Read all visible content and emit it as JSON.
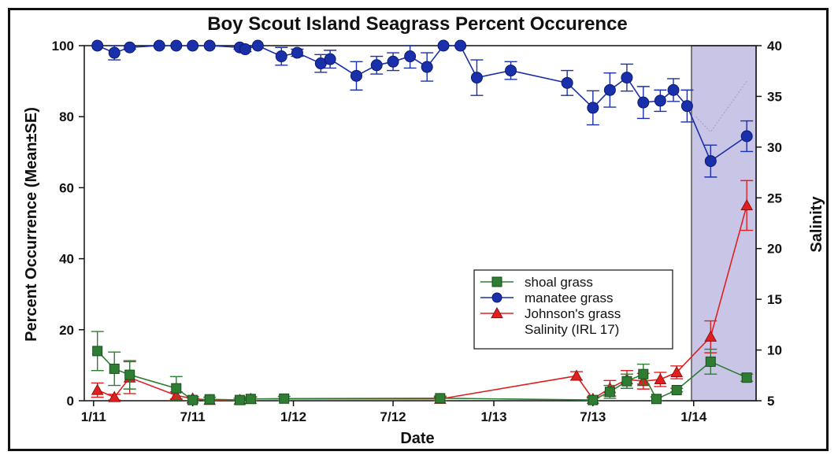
{
  "chart_data": {
    "type": "line",
    "title": "Boy Scout Island Seagrass Percent Occurence",
    "xlabel": "Date",
    "ylabel": "Percent Occurrence (Mean±SE)",
    "y2label": "Salinity",
    "xlim": [
      "2010-12-15",
      "2014-04-25"
    ],
    "ylim": [
      0,
      100
    ],
    "y2lim": [
      5,
      40
    ],
    "x_ticks": [
      {
        "date": "2011-01-01",
        "label": "1/11"
      },
      {
        "date": "2011-07-01",
        "label": "7/11"
      },
      {
        "date": "2012-01-01",
        "label": "1/12"
      },
      {
        "date": "2012-07-01",
        "label": "7/12"
      },
      {
        "date": "2013-01-01",
        "label": "1/13"
      },
      {
        "date": "2013-07-01",
        "label": "7/13"
      },
      {
        "date": "2014-01-01",
        "label": "1/14"
      }
    ],
    "y_ticks": [
      0,
      20,
      40,
      60,
      80,
      100
    ],
    "y2_ticks": [
      5,
      10,
      15,
      20,
      25,
      30,
      35,
      40
    ],
    "grid": false,
    "legend_position": "lower-right",
    "highlight_region": {
      "x0": "2013-12-28",
      "x1": "2014-04-25",
      "color": "#b7b2e0"
    },
    "series": [
      {
        "name": "shoal grass",
        "color": "#2e7d32",
        "marker": "square",
        "axis": "left",
        "points": [
          {
            "x": "2011-01-08",
            "y": 14,
            "err": 5.5
          },
          {
            "x": "2011-02-08",
            "y": 9,
            "err": 4.7
          },
          {
            "x": "2011-03-08",
            "y": 7.3,
            "err": 4
          },
          {
            "x": "2011-06-01",
            "y": 3.5,
            "err": 3.3
          },
          {
            "x": "2011-07-01",
            "y": 0.2,
            "err": 0.6
          },
          {
            "x": "2011-08-01",
            "y": 0.4,
            "err": 0.6
          },
          {
            "x": "2011-09-25",
            "y": 0.2,
            "err": 0.5
          },
          {
            "x": "2011-10-15",
            "y": 0.5,
            "err": 0.6
          },
          {
            "x": "2011-12-15",
            "y": 0.6,
            "err": 0.6
          },
          {
            "x": "2012-09-25",
            "y": 0.7,
            "err": 0.6
          },
          {
            "x": "2013-07-01",
            "y": 0.2,
            "err": 0.6
          },
          {
            "x": "2013-08-01",
            "y": 2.5,
            "err": 1.8
          },
          {
            "x": "2013-09-01",
            "y": 5.5,
            "err": 2
          },
          {
            "x": "2013-10-01",
            "y": 7.5,
            "err": 2.8
          },
          {
            "x": "2013-10-25",
            "y": 0.5,
            "err": 0.6
          },
          {
            "x": "2013-12-01",
            "y": 3,
            "err": 0.5
          },
          {
            "x": "2014-02-01",
            "y": 11,
            "err": 3.5
          },
          {
            "x": "2014-04-08",
            "y": 6.5,
            "err": 1
          }
        ]
      },
      {
        "name": "manatee grass",
        "color": "#1a2faa",
        "marker": "circle",
        "axis": "left",
        "points": [
          {
            "x": "2011-01-08",
            "y": 100,
            "err": 0
          },
          {
            "x": "2011-02-08",
            "y": 98,
            "err": 2
          },
          {
            "x": "2011-03-08",
            "y": 99.5,
            "err": 0.5
          },
          {
            "x": "2011-05-01",
            "y": 100,
            "err": 0
          },
          {
            "x": "2011-06-01",
            "y": 100,
            "err": 0
          },
          {
            "x": "2011-07-01",
            "y": 100,
            "err": 0
          },
          {
            "x": "2011-08-01",
            "y": 100,
            "err": 0
          },
          {
            "x": "2011-09-25",
            "y": 99.5,
            "err": 0.5
          },
          {
            "x": "2011-10-05",
            "y": 99,
            "err": 0.7
          },
          {
            "x": "2011-10-28",
            "y": 100,
            "err": 0
          },
          {
            "x": "2011-12-10",
            "y": 97,
            "err": 2.5
          },
          {
            "x": "2012-01-08",
            "y": 98,
            "err": 1
          },
          {
            "x": "2012-02-20",
            "y": 95,
            "err": 2.5
          },
          {
            "x": "2012-03-08",
            "y": 96.2,
            "err": 2.5
          },
          {
            "x": "2012-04-25",
            "y": 91.5,
            "err": 4
          },
          {
            "x": "2012-06-01",
            "y": 94.5,
            "err": 2.5
          },
          {
            "x": "2012-07-01",
            "y": 95.5,
            "err": 2.5
          },
          {
            "x": "2012-08-01",
            "y": 97,
            "err": 3.3
          },
          {
            "x": "2012-09-01",
            "y": 94,
            "err": 4
          },
          {
            "x": "2012-10-01",
            "y": 100,
            "err": 0
          },
          {
            "x": "2012-11-01",
            "y": 100,
            "err": 0
          },
          {
            "x": "2012-12-01",
            "y": 91,
            "err": 5
          },
          {
            "x": "2013-02-01",
            "y": 93,
            "err": 2.5
          },
          {
            "x": "2013-05-15",
            "y": 89.5,
            "err": 3.5
          },
          {
            "x": "2013-07-01",
            "y": 82.5,
            "err": 4.8
          },
          {
            "x": "2013-08-01",
            "y": 87.5,
            "err": 4.8
          },
          {
            "x": "2013-09-01",
            "y": 91,
            "err": 3.8
          },
          {
            "x": "2013-10-01",
            "y": 84,
            "err": 4.5
          },
          {
            "x": "2013-11-01",
            "y": 84.5,
            "err": 3
          },
          {
            "x": "2013-11-25",
            "y": 87.5,
            "err": 3.2
          },
          {
            "x": "2013-12-20",
            "y": 83,
            "err": 4.5
          },
          {
            "x": "2014-02-01",
            "y": 67.5,
            "err": 4.5
          },
          {
            "x": "2014-04-08",
            "y": 74.5,
            "err": 4.3
          }
        ]
      },
      {
        "name": "Johnson's grass",
        "color": "#e02020",
        "marker": "triangle",
        "axis": "left",
        "points": [
          {
            "x": "2011-01-08",
            "y": 3,
            "err": 2
          },
          {
            "x": "2011-02-08",
            "y": 1,
            "err": 0.8
          },
          {
            "x": "2011-03-08",
            "y": 6.5,
            "err": 4.5
          },
          {
            "x": "2011-06-01",
            "y": 1.5,
            "err": 1
          },
          {
            "x": "2011-07-01",
            "y": 0.6,
            "err": 0.6
          },
          {
            "x": "2011-08-01",
            "y": 0.2,
            "err": 0.4
          },
          {
            "x": "2011-09-25",
            "y": 0.2,
            "err": 0.4
          },
          {
            "x": "2011-10-15",
            "y": 0.5,
            "err": 0.5
          },
          {
            "x": "2012-09-25",
            "y": 0.5,
            "err": 0.5
          },
          {
            "x": "2013-06-01",
            "y": 7,
            "err": 1.2
          },
          {
            "x": "2013-07-01",
            "y": 0.5,
            "err": 0.6
          },
          {
            "x": "2013-08-01",
            "y": 3.5,
            "err": 2.2
          },
          {
            "x": "2013-09-01",
            "y": 6,
            "err": 2.5
          },
          {
            "x": "2013-10-01",
            "y": 5.5,
            "err": 2.2
          },
          {
            "x": "2013-11-01",
            "y": 6,
            "err": 2
          },
          {
            "x": "2013-12-01",
            "y": 8,
            "err": 1.8
          },
          {
            "x": "2014-02-01",
            "y": 18,
            "err": 4.5
          },
          {
            "x": "2014-04-08",
            "y": 55,
            "err": 7
          }
        ]
      },
      {
        "name": "Salinity (IRL 17)",
        "color": "#888888",
        "marker": "none",
        "axis": "right",
        "points": [
          {
            "x": "2014-01-05",
            "y": 33
          },
          {
            "x": "2014-02-01",
            "y": 31.5
          },
          {
            "x": "2014-04-08",
            "y": 36.5
          }
        ]
      }
    ]
  }
}
